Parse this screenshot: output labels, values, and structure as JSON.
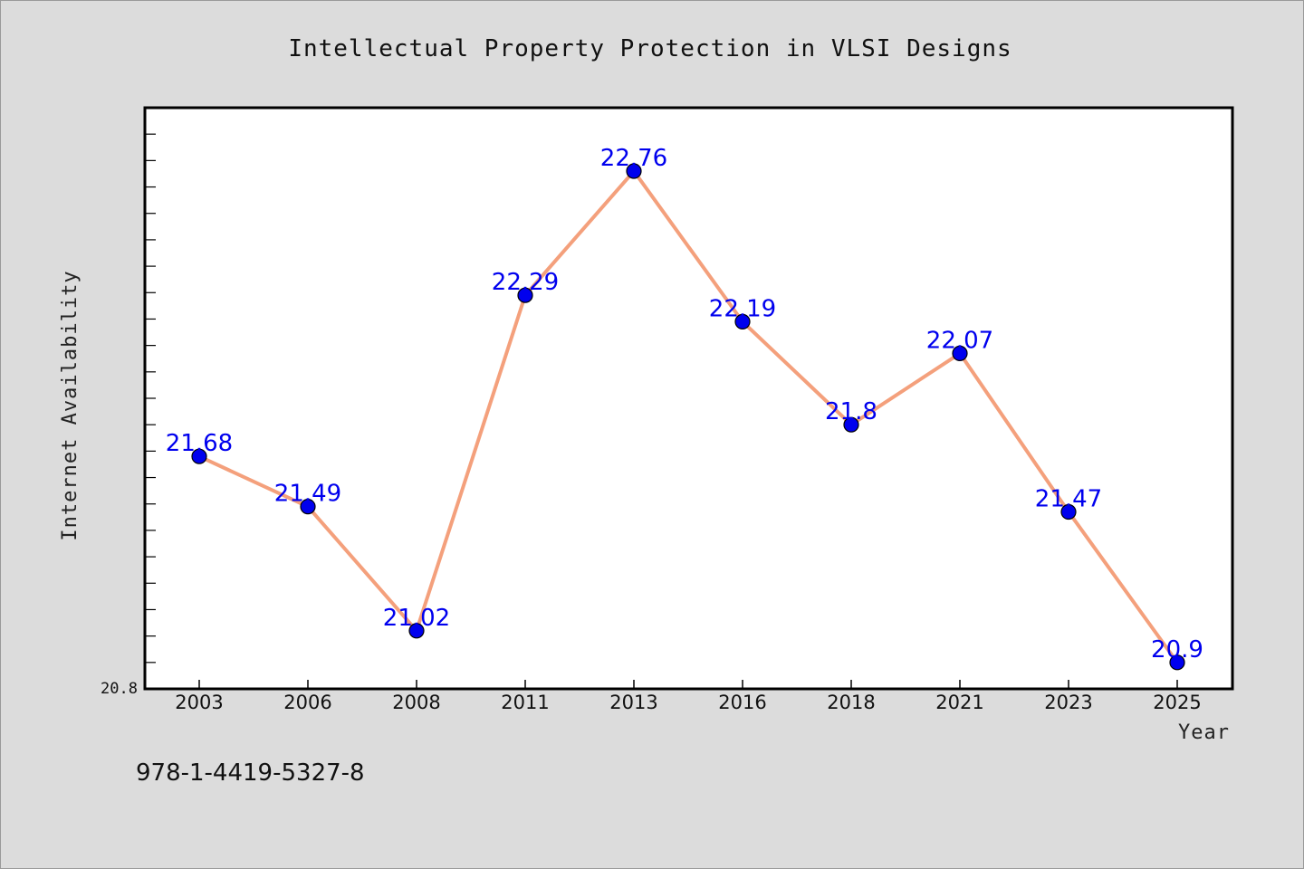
{
  "chart_data": {
    "type": "line",
    "title": "Intellectual Property Protection in VLSI Designs",
    "xlabel": "Year",
    "ylabel": "Internet Availability",
    "categories": [
      "2003",
      "2006",
      "2008",
      "2011",
      "2013",
      "2016",
      "2018",
      "2021",
      "2023",
      "2025"
    ],
    "values": [
      21.68,
      21.49,
      21.02,
      22.29,
      22.76,
      22.19,
      21.8,
      22.07,
      21.47,
      20.9
    ],
    "data_labels": [
      "21.68",
      "21.49",
      "21.02",
      "22.29",
      "22.76",
      "22.19",
      "21.8",
      "22.07",
      "21.47",
      "20.9"
    ],
    "ylim": [
      20.8,
      23.0
    ],
    "y_min_label": "20.8",
    "line_color": "#f4a07c",
    "marker_color": "#0000ee",
    "label_color": "#0000ee",
    "grid": false,
    "legend": "none"
  },
  "footer": {
    "isbn": "978-1-4419-5327-8"
  }
}
